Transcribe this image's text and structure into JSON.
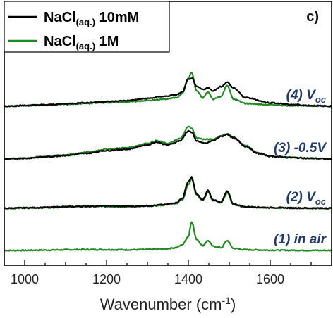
{
  "chart_data": {
    "type": "line",
    "panel_label": "c)",
    "xlabel": "Wavenumber (cm",
    "xlabel_sup": "-1",
    "xlabel_end": ")",
    "xlim": [
      950,
      1750
    ],
    "xticks": [
      1000,
      1200,
      1400,
      1600
    ],
    "grid": false,
    "legend_position": "top-left",
    "series": [
      {
        "name": "NaCl(aq.) 10mM",
        "name_main": "NaCl",
        "name_sub": "(aq.)",
        "name_tail": " 10mM",
        "color": "#000000"
      },
      {
        "name": "NaCl(aq.) 1M",
        "name_main": "NaCl",
        "name_sub": "(aq.)",
        "name_tail": " 1M",
        "color": "#1f8a1f"
      }
    ],
    "traces": [
      {
        "label_prefix": "(1) in air",
        "label_sub": "",
        "label_color": "#1f3a6b",
        "offset": 0,
        "scale": 1.0,
        "profiles": [
          {
            "series": "NaCl(aq.) 1M",
            "x": [
              950,
              1000,
              1050,
              1100,
              1150,
              1200,
              1250,
              1300,
              1340,
              1370,
              1385,
              1400,
              1408,
              1420,
              1435,
              1448,
              1460,
              1480,
              1495,
              1510,
              1540,
              1600,
              1650,
              1700,
              1750
            ],
            "y": [
              0,
              0.2,
              0.5,
              1.0,
              1.3,
              1.2,
              1.0,
              1.3,
              2.2,
              4.0,
              8.0,
              20.0,
              41.0,
              16.0,
              7.0,
              14.0,
              6.0,
              4.0,
              14.0,
              3.0,
              1.0,
              0.4,
              0.2,
              0.1,
              0
            ]
          }
        ]
      },
      {
        "label_prefix": "(2) V",
        "label_sub": "oc",
        "label_color": "#1f3a6b",
        "offset": 60,
        "scale": 1.0,
        "profiles": [
          {
            "series": "NaCl(aq.) 10mM",
            "x": [
              950,
              1000,
              1050,
              1100,
              1150,
              1200,
              1250,
              1300,
              1340,
              1370,
              1385,
              1400,
              1408,
              1420,
              1435,
              1448,
              1460,
              1480,
              1495,
              1510,
              1540,
              1600,
              1650,
              1700,
              1750
            ],
            "y": [
              0,
              0.5,
              1.2,
              2.2,
              3.0,
              3.2,
              2.8,
              3.4,
              5.0,
              8.0,
              14.0,
              38.0,
              44.0,
              20.0,
              12.0,
              25.0,
              12.0,
              9.0,
              24.0,
              6.0,
              2.0,
              1.0,
              0.5,
              0.2,
              0
            ]
          },
          {
            "series": "NaCl(aq.) 1M",
            "x": [
              950,
              1000,
              1050,
              1100,
              1150,
              1200,
              1250,
              1300,
              1340,
              1370,
              1385,
              1400,
              1408,
              1420,
              1435,
              1448,
              1460,
              1480,
              1495,
              1510,
              1540,
              1600,
              1650,
              1700,
              1750
            ],
            "y": [
              0,
              0.4,
              1.0,
              1.8,
              2.5,
              2.7,
              2.4,
              3.0,
              4.4,
              7.0,
              12.0,
              34.0,
              42.0,
              19.0,
              11.0,
              23.0,
              11.0,
              8.0,
              22.0,
              5.0,
              1.8,
              0.9,
              0.4,
              0.2,
              0
            ]
          }
        ]
      },
      {
        "label_prefix": "(3) -0.5V",
        "label_sub": "",
        "label_color": "#1f3a6b",
        "offset": 130,
        "scale": 1.0,
        "profiles": [
          {
            "series": "NaCl(aq.) 10mM",
            "x": [
              950,
              1000,
              1050,
              1100,
              1150,
              1200,
              1250,
              1300,
              1320,
              1350,
              1380,
              1400,
              1408,
              1420,
              1440,
              1460,
              1480,
              1495,
              1510,
              1540,
              1570,
              1600,
              1650,
              1700,
              1750
            ],
            "y": [
              0,
              1.0,
              3.0,
              5.0,
              8.0,
              12.0,
              14.0,
              20.0,
              24.0,
              20.0,
              26.0,
              40.0,
              38.0,
              26.0,
              22.0,
              26.0,
              32.0,
              35.0,
              30.0,
              18.0,
              8.0,
              4.0,
              2.0,
              1.0,
              0
            ]
          },
          {
            "series": "NaCl(aq.) 1M",
            "x": [
              950,
              1000,
              1050,
              1100,
              1150,
              1200,
              1250,
              1300,
              1320,
              1350,
              1380,
              1400,
              1408,
              1420,
              1440,
              1460,
              1480,
              1495,
              1510,
              1540,
              1570,
              1600,
              1650,
              1700,
              1750
            ],
            "y": [
              0,
              1.2,
              3.6,
              6.0,
              9.5,
              14.0,
              16.0,
              22.0,
              26.0,
              22.0,
              29.0,
              46.0,
              44.0,
              30.0,
              28.0,
              28.0,
              33.0,
              36.0,
              31.0,
              19.0,
              8.5,
              4.2,
              2.1,
              1.0,
              0
            ]
          }
        ]
      },
      {
        "label_prefix": "(4) V",
        "label_sub": "oc",
        "label_color": "#1f3a6b",
        "offset": 205,
        "scale": 1.0,
        "profiles": [
          {
            "series": "NaCl(aq.) 10mM",
            "x": [
              950,
              1000,
              1050,
              1100,
              1150,
              1200,
              1250,
              1300,
              1340,
              1370,
              1385,
              1400,
              1408,
              1420,
              1435,
              1448,
              1460,
              1480,
              1495,
              1510,
              1540,
              1600,
              1650,
              1700,
              1750
            ],
            "y": [
              0,
              1.0,
              2.0,
              3.5,
              5.0,
              6.5,
              8.0,
              11.0,
              14.0,
              16.0,
              20.0,
              38.0,
              40.0,
              28.0,
              24.0,
              26.0,
              22.0,
              28.0,
              34.0,
              26.0,
              12.0,
              5.0,
              2.5,
              1.0,
              0
            ]
          },
          {
            "series": "NaCl(aq.) 1M",
            "x": [
              950,
              1000,
              1050,
              1100,
              1150,
              1200,
              1250,
              1300,
              1340,
              1370,
              1385,
              1400,
              1408,
              1420,
              1435,
              1448,
              1460,
              1480,
              1495,
              1510,
              1540,
              1600,
              1650,
              1700,
              1750
            ],
            "y": [
              0,
              0.8,
              1.6,
              2.8,
              4.0,
              5.2,
              6.0,
              8.0,
              10.0,
              12.0,
              18.0,
              40.0,
              48.0,
              22.0,
              12.0,
              20.0,
              10.0,
              14.0,
              30.0,
              10.0,
              4.0,
              2.0,
              1.0,
              0.5,
              0
            ]
          }
        ]
      }
    ]
  }
}
